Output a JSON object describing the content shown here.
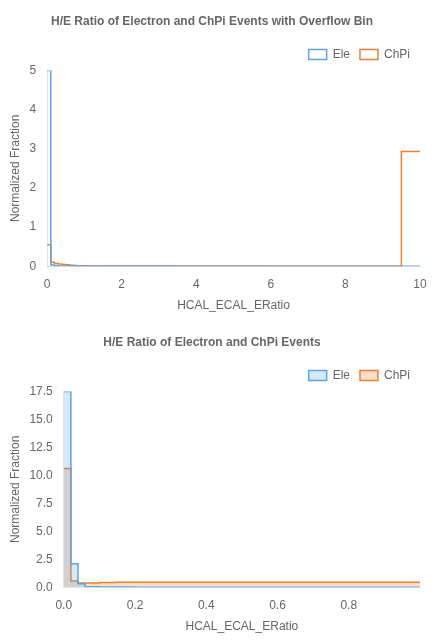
{
  "chart_data": [
    {
      "type": "step",
      "title": "H/E Ratio of Electron and ChPi Events with Overflow Bin",
      "xlabel": "HCAL_ECAL_ERatio",
      "ylabel": "Normalized Fraction",
      "bins": [
        0.0,
        0.1,
        0.2,
        0.3,
        0.4,
        0.5,
        0.6,
        0.7,
        0.8,
        0.9,
        1.0,
        1.5,
        2.0,
        2.5,
        3.0,
        3.5,
        4.0,
        4.5,
        5.0,
        5.5,
        6.0,
        6.5,
        7.0,
        7.5,
        8.0,
        8.5,
        9.0,
        9.5,
        10.0
      ],
      "series": [
        {
          "name": "Ele",
          "color": "#5BA4E6",
          "values": [
            5.0,
            0.03,
            0.01,
            0.006,
            0.005,
            0.004,
            0.004,
            0.003,
            0.003,
            0.003,
            0.003,
            0.002,
            0.002,
            0.002,
            0.002,
            0.001,
            0.001,
            0.001,
            0.001,
            0.001,
            0.001,
            0.001,
            0.001,
            0.001,
            0.001,
            0.001,
            0.001,
            0.001
          ]
        },
        {
          "name": "ChPi",
          "color": "#F08030",
          "values": [
            0.55,
            0.1,
            0.07,
            0.055,
            0.045,
            0.035,
            0.025,
            0.018,
            0.012,
            0.009,
            0.007,
            0.005,
            0.004,
            0.003,
            0.003,
            0.002,
            0.002,
            0.002,
            0.002,
            0.002,
            0.001,
            0.001,
            0.001,
            0.001,
            0.001,
            0.001,
            0.001,
            2.93
          ]
        }
      ],
      "xlim": [
        0,
        10
      ],
      "ylim": [
        0,
        5
      ],
      "xticks": [
        0,
        2,
        4,
        6,
        8,
        10
      ],
      "yticks": [
        0,
        1,
        2,
        3,
        4,
        5
      ],
      "grid": false,
      "legend": "upper right"
    },
    {
      "type": "area",
      "title": "H/E Ratio of Electron and ChPi Events",
      "xlabel": "HCAL_ECAL_ERatio",
      "ylabel": "Normalized Fraction",
      "bins": [
        0.0,
        0.02,
        0.04,
        0.06,
        0.08,
        0.1,
        0.15,
        0.2,
        0.3,
        0.4,
        0.5,
        0.6,
        0.7,
        0.8,
        0.9,
        1.0
      ],
      "series": [
        {
          "name": "Ele",
          "color": "#5BA4E6",
          "values": [
            17.5,
            2.1,
            0.3,
            0.05,
            0.03,
            0.02,
            0.01,
            0.005,
            0.005,
            0.005,
            0.003,
            0.003,
            0.003,
            0.003,
            0.003
          ]
        },
        {
          "name": "ChPi",
          "color": "#F08030",
          "values": [
            10.6,
            0.55,
            0.38,
            0.38,
            0.38,
            0.42,
            0.45,
            0.45,
            0.45,
            0.45,
            0.45,
            0.45,
            0.45,
            0.45,
            0.45
          ]
        }
      ],
      "xlim": [
        0,
        1.0
      ],
      "ylim": [
        0,
        17.5
      ],
      "xticks": [
        {
          "value": 0.0,
          "label": "0.0"
        },
        0.2,
        0.4,
        0.6,
        0.8
      ],
      "yticks": [
        {
          "value": 0.0,
          "label": "0.0"
        },
        2.5,
        {
          "value": 5.0,
          "label": "5.0"
        },
        7.5,
        {
          "value": 10.0,
          "label": "10.0"
        },
        12.5,
        {
          "value": 15.0,
          "label": "15.0"
        },
        17.5
      ],
      "grid": false,
      "legend": "upper right"
    }
  ]
}
